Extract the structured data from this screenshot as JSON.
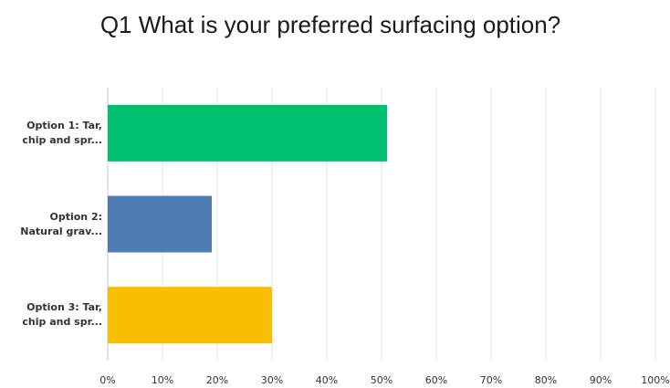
{
  "chart_data": {
    "type": "bar",
    "orientation": "horizontal",
    "title": "Q1 What is your preferred surfacing option?",
    "categories": [
      [
        "Option 1: Tar,",
        "chip and spr..."
      ],
      [
        "Option 2:",
        "Natural grav..."
      ],
      [
        "Option 3: Tar,",
        "chip and spr..."
      ]
    ],
    "values": [
      51,
      19,
      30
    ],
    "unit": "%",
    "bar_colors": [
      "#00bf6f",
      "#507cb6",
      "#f9be00"
    ],
    "xlim": [
      0,
      100
    ],
    "x_ticks": [
      "0%",
      "10%",
      "20%",
      "30%",
      "40%",
      "50%",
      "60%",
      "70%",
      "80%",
      "90%",
      "100%"
    ],
    "grid": true,
    "legend": "none"
  }
}
